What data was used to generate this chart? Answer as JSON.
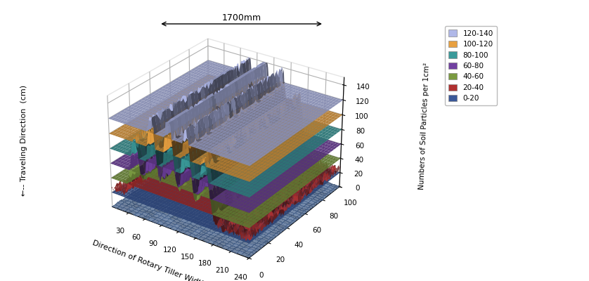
{
  "xlabel": "Direction of Rotary Tiller Width (cm)",
  "zlabel": "Numbers of Soil Particles per 1cm²",
  "x_ticks": [
    30,
    60,
    90,
    120,
    150,
    180,
    210,
    240
  ],
  "y_ticks": [
    0,
    20,
    40,
    60,
    80,
    100
  ],
  "z_ticks": [
    0,
    20,
    40,
    60,
    80,
    100,
    120,
    140
  ],
  "xlim": [
    0,
    240
  ],
  "ylim": [
    0,
    100
  ],
  "zlim": [
    0,
    150
  ],
  "annotation": "1700mm",
  "legend_labels": [
    "120-140",
    "100-120",
    "80-100",
    "60-80",
    "40-60",
    "20-40",
    "0-20"
  ],
  "legend_colors": [
    "#b0b8e8",
    "#e8a040",
    "#3a9a9a",
    "#7040a0",
    "#7a9a40",
    "#b03030",
    "#3a5898"
  ],
  "layer_boundaries": [
    0,
    20,
    40,
    60,
    80,
    100,
    120,
    140
  ],
  "layer_colors": [
    "#3a5898",
    "#b03030",
    "#7a9a40",
    "#7040a0",
    "#3a9a9a",
    "#e8a040",
    "#b0b8e8"
  ],
  "blade_centers": [
    45,
    75,
    105,
    135,
    165
  ],
  "blade_amplitudes": [
    85,
    125,
    140,
    120,
    90
  ],
  "blade_sigma": 7.5,
  "base_level": 30,
  "floor_color": "#5577aa",
  "background_color": "#ffffff",
  "elev": 28,
  "azim": -55,
  "figsize": [
    8.38,
    4.0
  ],
  "dpi": 100
}
